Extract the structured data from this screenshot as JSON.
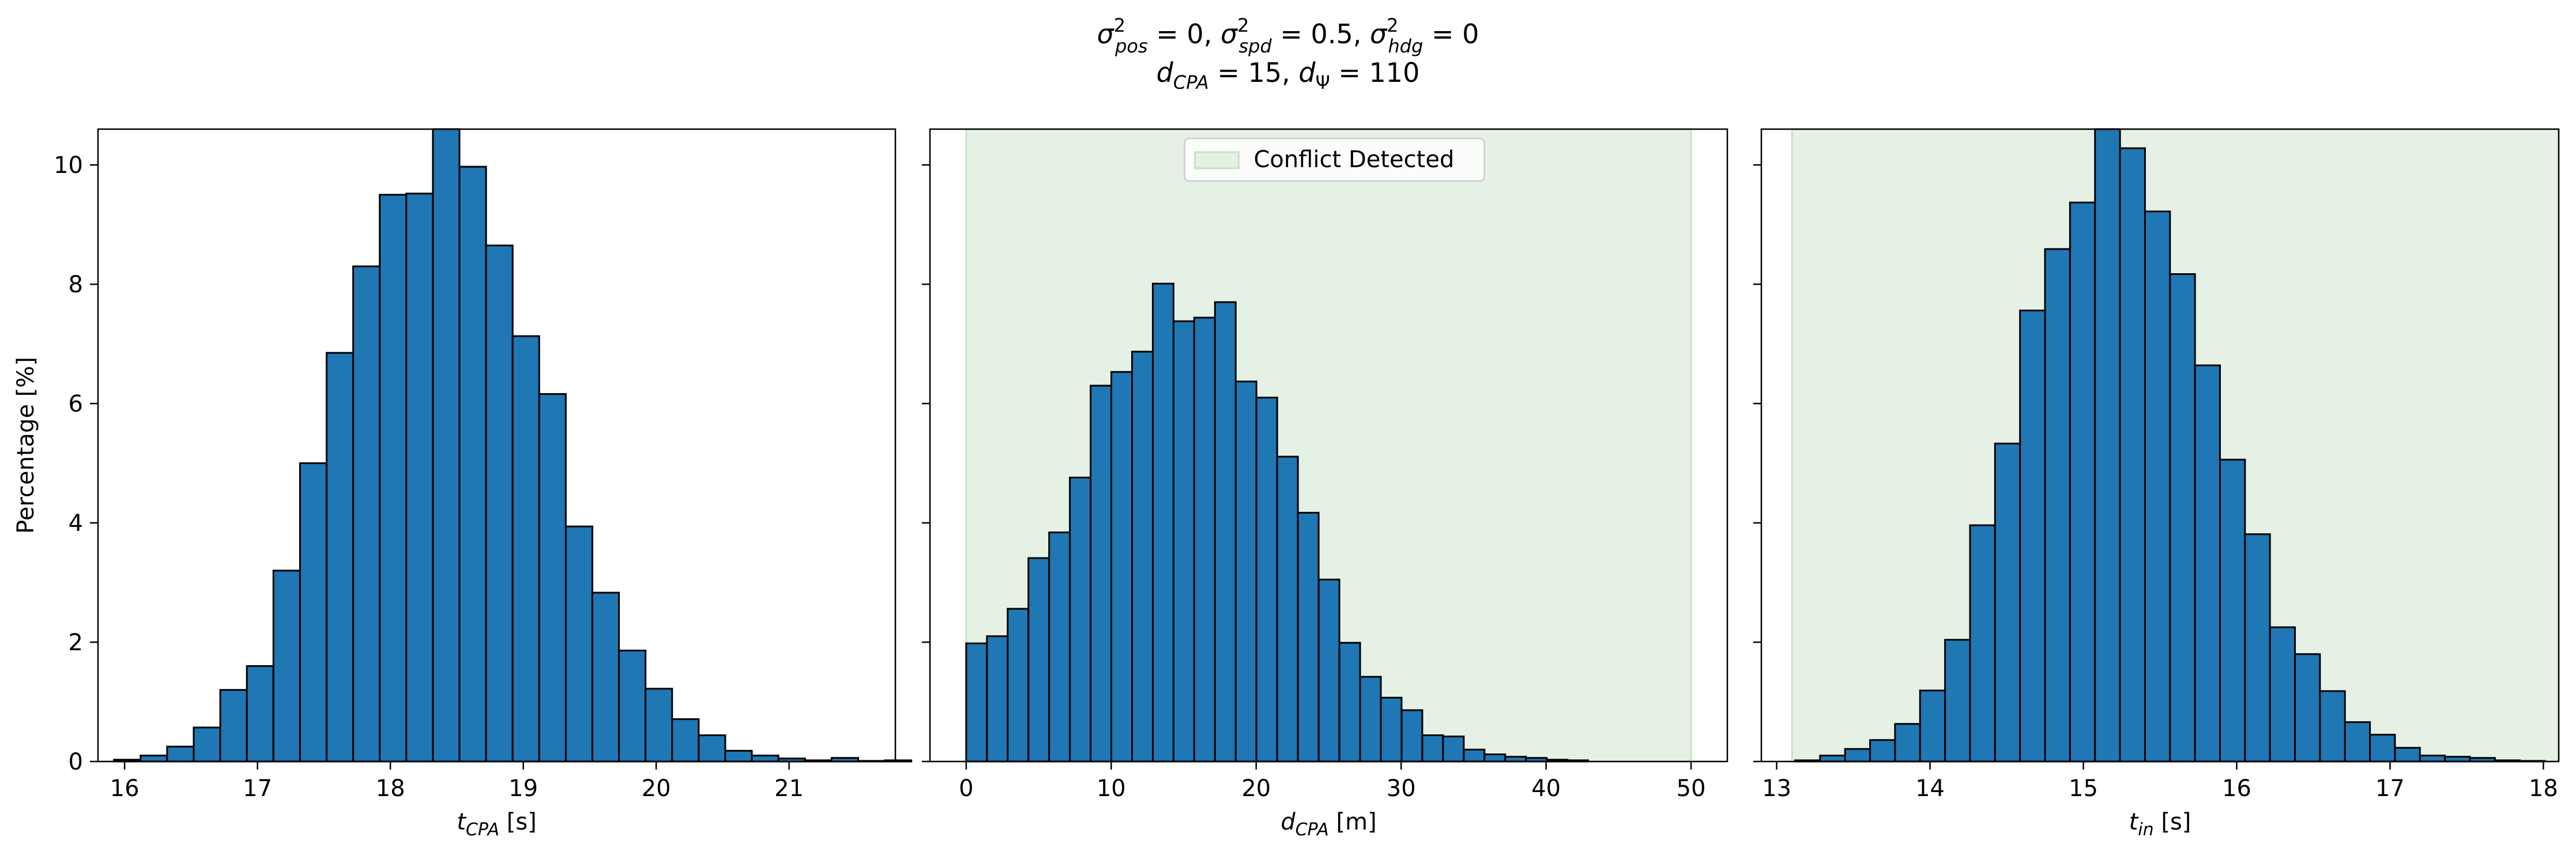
{
  "figure": {
    "title_line1": "σ²pos = 0, σ²spd = 0.5, σ²hdg = 0",
    "title_line2": "dCPA = 15, dΨ = 110"
  },
  "colors": {
    "bar_fill": "#1f77b4",
    "bar_edge": "#000000",
    "conflict_fill": "#e5f1e4",
    "conflict_edge": "#c6e2c3"
  },
  "chart_data": [
    {
      "type": "bar",
      "xlabel_var": "t",
      "xlabel_sub": "CPA",
      "xlabel_unit": " [s]",
      "ylabel": "Percentage [%]",
      "xlim": [
        15.8,
        21.8
      ],
      "ylim": [
        0,
        10.6
      ],
      "xticks": [
        16,
        17,
        18,
        19,
        20,
        21
      ],
      "yticks": [
        0,
        2,
        4,
        6,
        8,
        10
      ],
      "bin_start": 15.92,
      "bin_width": 0.2,
      "values": [
        0.03,
        0.1,
        0.25,
        0.57,
        1.2,
        1.6,
        3.2,
        5.0,
        6.85,
        8.3,
        9.5,
        9.52,
        10.6,
        9.97,
        8.65,
        7.13,
        6.16,
        3.94,
        2.83,
        1.86,
        1.22,
        0.71,
        0.44,
        0.18,
        0.1,
        0.05,
        0.02,
        0.06,
        0.01,
        0.02
      ]
    },
    {
      "type": "bar",
      "xlabel_var": "d",
      "xlabel_sub": "CPA",
      "xlabel_unit": " [m]",
      "xlim": [
        -2.5,
        52.5
      ],
      "ylim": [
        0,
        10.6
      ],
      "xticks": [
        0,
        10,
        20,
        30,
        40,
        50
      ],
      "yticks": [
        0,
        2,
        4,
        6,
        8,
        10
      ],
      "bin_start": 0,
      "bin_width": 1.43,
      "values": [
        1.98,
        2.1,
        2.56,
        3.41,
        3.84,
        4.76,
        6.3,
        6.53,
        6.87,
        8.01,
        7.38,
        7.44,
        7.7,
        6.37,
        6.1,
        5.11,
        4.17,
        3.05,
        1.99,
        1.42,
        1.07,
        0.86,
        0.44,
        0.42,
        0.2,
        0.12,
        0.08,
        0.06,
        0.03,
        0.02
      ],
      "conflict_region": [
        0,
        50
      ],
      "legend": {
        "label": "Conflict Detected",
        "position": "upper center"
      }
    },
    {
      "type": "bar",
      "xlabel_var": "t",
      "xlabel_sub": "in",
      "xlabel_unit": " [s]",
      "xlim": [
        12.9,
        18.1
      ],
      "ylim": [
        0,
        10.6
      ],
      "xticks": [
        13,
        14,
        15,
        16,
        17,
        18
      ],
      "yticks": [
        0,
        2,
        4,
        6,
        8,
        10
      ],
      "bin_start": 13.12,
      "bin_width": 0.163,
      "values": [
        0.02,
        0.1,
        0.21,
        0.36,
        0.63,
        1.19,
        2.04,
        3.96,
        5.33,
        7.56,
        8.59,
        9.37,
        10.6,
        10.28,
        9.22,
        8.17,
        6.64,
        5.06,
        3.81,
        2.25,
        1.8,
        1.18,
        0.66,
        0.45,
        0.23,
        0.1,
        0.08,
        0.06,
        0.02,
        0.01
      ],
      "conflict_region": [
        13.1,
        18.1
      ]
    }
  ]
}
